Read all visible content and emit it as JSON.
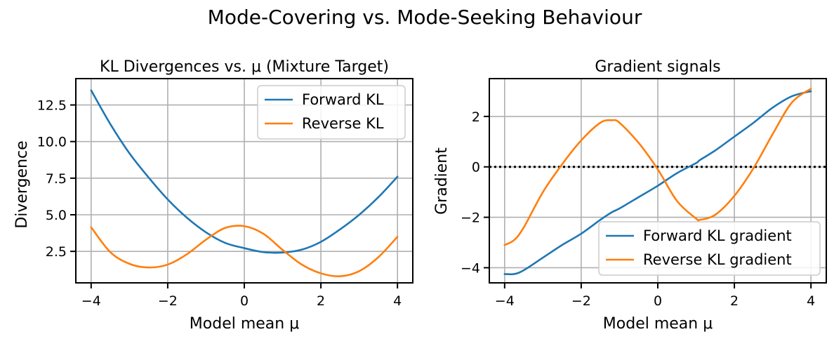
{
  "figure": {
    "suptitle": "Mode-Covering vs. Mode-Seeking Behaviour"
  },
  "colors": {
    "forward": "#1f77b4",
    "reverse": "#ff7f0e",
    "grid": "#b0b0b0",
    "zero_line": "#000000"
  },
  "chart_data": [
    {
      "type": "line",
      "title": "KL Divergences vs. μ (Mixture Target)",
      "xlabel": "Model mean μ",
      "ylabel": "Divergence",
      "xlim": [
        -4.4,
        4.4
      ],
      "ylim": [
        0.35,
        14.3
      ],
      "xticks": [
        -4,
        -2,
        0,
        2,
        4
      ],
      "xtick_labels": [
        "−4",
        "−2",
        "0",
        "2",
        "4"
      ],
      "yticks": [
        2.5,
        5.0,
        7.5,
        10.0,
        12.5
      ],
      "ytick_labels": [
        "2.5",
        "5.0",
        "7.5",
        "10.0",
        "12.5"
      ],
      "grid": true,
      "legend_position": "upper right",
      "x": [
        -4.0,
        -3.5,
        -3.0,
        -2.5,
        -2.0,
        -1.5,
        -1.0,
        -0.5,
        0.0,
        0.5,
        1.0,
        1.5,
        2.0,
        2.5,
        3.0,
        3.5,
        4.0
      ],
      "series": [
        {
          "name": "Forward KL",
          "values": [
            13.5,
            11.2,
            9.2,
            7.55,
            6.05,
            4.8,
            3.8,
            3.08,
            2.72,
            2.45,
            2.42,
            2.62,
            3.15,
            4.0,
            5.0,
            6.2,
            7.6
          ]
        },
        {
          "name": "Reverse KL",
          "values": [
            4.15,
            2.45,
            1.65,
            1.4,
            1.6,
            2.3,
            3.3,
            4.1,
            4.22,
            3.7,
            2.6,
            1.6,
            1.0,
            0.8,
            1.15,
            2.1,
            3.5
          ]
        }
      ]
    },
    {
      "type": "line",
      "title": "Gradient signals",
      "xlabel": "Model mean μ",
      "ylabel": "Gradient",
      "xlim": [
        -4.4,
        4.4
      ],
      "ylim": [
        -4.6,
        3.5
      ],
      "xticks": [
        -4,
        -2,
        0,
        2,
        4
      ],
      "xtick_labels": [
        "−4",
        "−2",
        "0",
        "2",
        "4"
      ],
      "yticks": [
        -4,
        -2,
        0,
        2
      ],
      "ytick_labels": [
        "−4",
        "−2",
        "0",
        "2"
      ],
      "grid": true,
      "zero_line": true,
      "legend_position": "lower right",
      "x": [
        -4.0,
        -3.75,
        -3.5,
        -3.0,
        -2.5,
        -2.0,
        -1.5,
        -1.2,
        -1.0,
        -0.5,
        0.0,
        0.5,
        1.0,
        1.1,
        1.5,
        2.0,
        2.5,
        3.0,
        3.5,
        4.0
      ],
      "series": [
        {
          "name": "Forward KL gradient",
          "values": [
            -4.25,
            -4.25,
            -4.1,
            -3.6,
            -3.1,
            -2.65,
            -2.1,
            -1.8,
            -1.65,
            -1.2,
            -0.75,
            -0.25,
            0.15,
            0.27,
            0.65,
            1.2,
            1.75,
            2.35,
            2.8,
            3.0
          ]
        },
        {
          "name": "Reverse KL gradient",
          "values": [
            -3.1,
            -2.9,
            -2.4,
            -1.0,
            0.1,
            1.05,
            1.75,
            1.85,
            1.75,
            0.95,
            -0.1,
            -1.35,
            -2.05,
            -2.1,
            -1.9,
            -1.15,
            -0.05,
            1.3,
            2.55,
            3.1
          ]
        }
      ]
    }
  ]
}
